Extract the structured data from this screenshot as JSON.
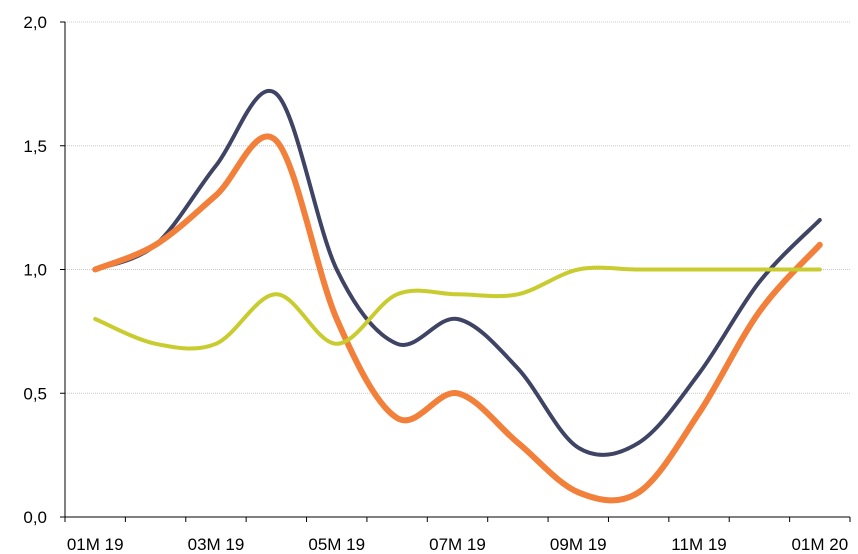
{
  "chart_data": {
    "type": "line",
    "title": "",
    "xlabel": "",
    "ylabel": "",
    "x_ticks": [
      "01M 19",
      "03M 19",
      "05M 19",
      "07M 19",
      "09M 19",
      "11M 19",
      "01M 20"
    ],
    "x_values": [
      1,
      2,
      3,
      4,
      5,
      6,
      7,
      8,
      9,
      10,
      11,
      12,
      13
    ],
    "y_ticks": [
      "0,0",
      "0,5",
      "1,0",
      "1,5",
      "2,0"
    ],
    "ylim": [
      0,
      2
    ],
    "grid": "horizontal",
    "legend": "none",
    "series": [
      {
        "color": "#3f4364",
        "values": [
          1.0,
          1.1,
          1.42,
          1.71,
          1.0,
          0.7,
          0.8,
          0.6,
          0.28,
          0.3,
          0.58,
          0.95,
          1.2
        ]
      },
      {
        "color": "#f2803b",
        "values": [
          1.0,
          1.1,
          1.3,
          1.52,
          0.8,
          0.4,
          0.5,
          0.3,
          0.1,
          0.1,
          0.42,
          0.83,
          1.1
        ]
      },
      {
        "color": "#c8cc2e",
        "values": [
          0.8,
          0.7,
          0.7,
          0.9,
          0.7,
          0.9,
          0.9,
          0.9,
          1.0,
          1.0,
          1.0,
          1.0,
          1.0
        ]
      }
    ]
  }
}
